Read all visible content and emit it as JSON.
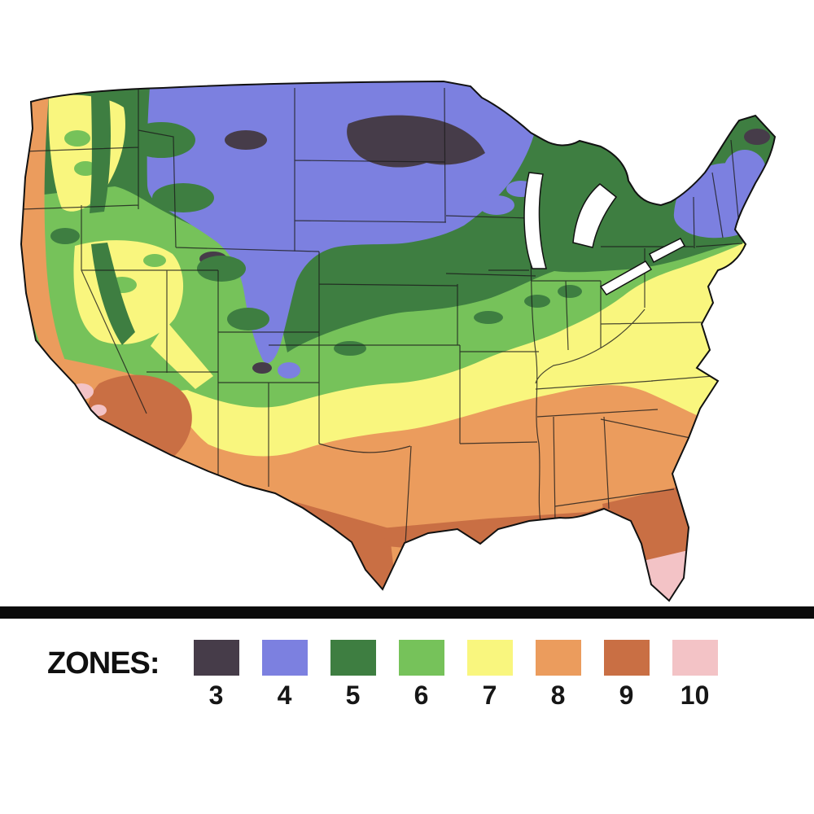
{
  "legend": {
    "title": "ZONES:",
    "zones": [
      {
        "label": "3",
        "color": "#463c49"
      },
      {
        "label": "4",
        "color": "#7c80e0"
      },
      {
        "label": "5",
        "color": "#3e7e41"
      },
      {
        "label": "6",
        "color": "#76c25a"
      },
      {
        "label": "7",
        "color": "#f9f67e"
      },
      {
        "label": "8",
        "color": "#eb9c5d"
      },
      {
        "label": "9",
        "color": "#c96f44"
      },
      {
        "label": "10",
        "color": "#f3c3c6"
      }
    ]
  },
  "map": {
    "outline_color": "#111111",
    "border_line_color": "#1b1b1b",
    "water_color": "#ffffff"
  }
}
